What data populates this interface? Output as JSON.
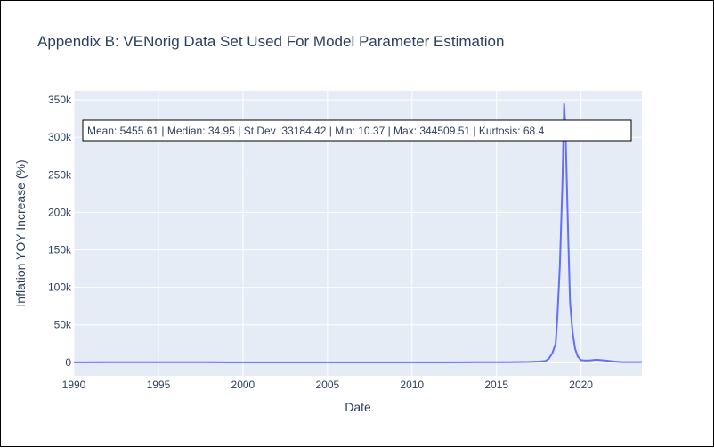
{
  "chart_data": {
    "type": "line",
    "title": "Appendix B: VENorig Data Set Used For Model Parameter Estimation",
    "xlabel": "Date",
    "ylabel": "Inflation YOY Increase (%)",
    "xlim": [
      1990,
      2023.6
    ],
    "ylim": [
      -18000,
      362000
    ],
    "x_ticks": [
      1990,
      1995,
      2000,
      2005,
      2010,
      2015,
      2020
    ],
    "x_tick_labels": [
      "1990",
      "1995",
      "2000",
      "2005",
      "2010",
      "2015",
      "2020"
    ],
    "y_ticks": [
      0,
      50000,
      100000,
      150000,
      200000,
      250000,
      300000,
      350000
    ],
    "y_tick_labels": [
      "0",
      "50k",
      "100k",
      "150k",
      "200k",
      "250k",
      "300k",
      "350k"
    ],
    "grid": true,
    "annotation": "Mean: 5455.61 | Median: 34.95 | St Dev :33184.42 | Min: 10.37 | Max: 344509.51 | Kurtosis: 68.4",
    "colors": {
      "line": "#636efa",
      "plot_bg": "#e5ecf6",
      "grid": "#ffffff",
      "text": "#2a3f5f"
    },
    "series": [
      {
        "x": [
          1990.0,
          1992.0,
          1994.0,
          1996.0,
          1998.0,
          2000.0,
          2002.0,
          2004.0,
          2006.0,
          2008.0,
          2010.0,
          2012.0,
          2014.0,
          2015.0,
          2016.0,
          2017.0,
          2017.5,
          2017.9,
          2018.1,
          2018.3,
          2018.5,
          2018.6,
          2018.75,
          2018.9,
          2019.0,
          2019.08,
          2019.16,
          2019.25,
          2019.35,
          2019.5,
          2019.65,
          2019.8,
          2020.0,
          2020.2,
          2020.5,
          2020.9,
          2021.2,
          2021.6,
          2022.0,
          2022.4,
          2023.0,
          2023.6
        ],
        "y": [
          30,
          35,
          60,
          100,
          40,
          20,
          25,
          20,
          15,
          30,
          28,
          25,
          60,
          150,
          300,
          500,
          1000,
          1800,
          5000,
          12000,
          25000,
          60000,
          130000,
          240000,
          344509.51,
          310000,
          240000,
          160000,
          80000,
          40000,
          18000,
          8000,
          3000,
          2500,
          2500,
          3500,
          3000,
          2000,
          800,
          300,
          250,
          200
        ]
      }
    ]
  }
}
